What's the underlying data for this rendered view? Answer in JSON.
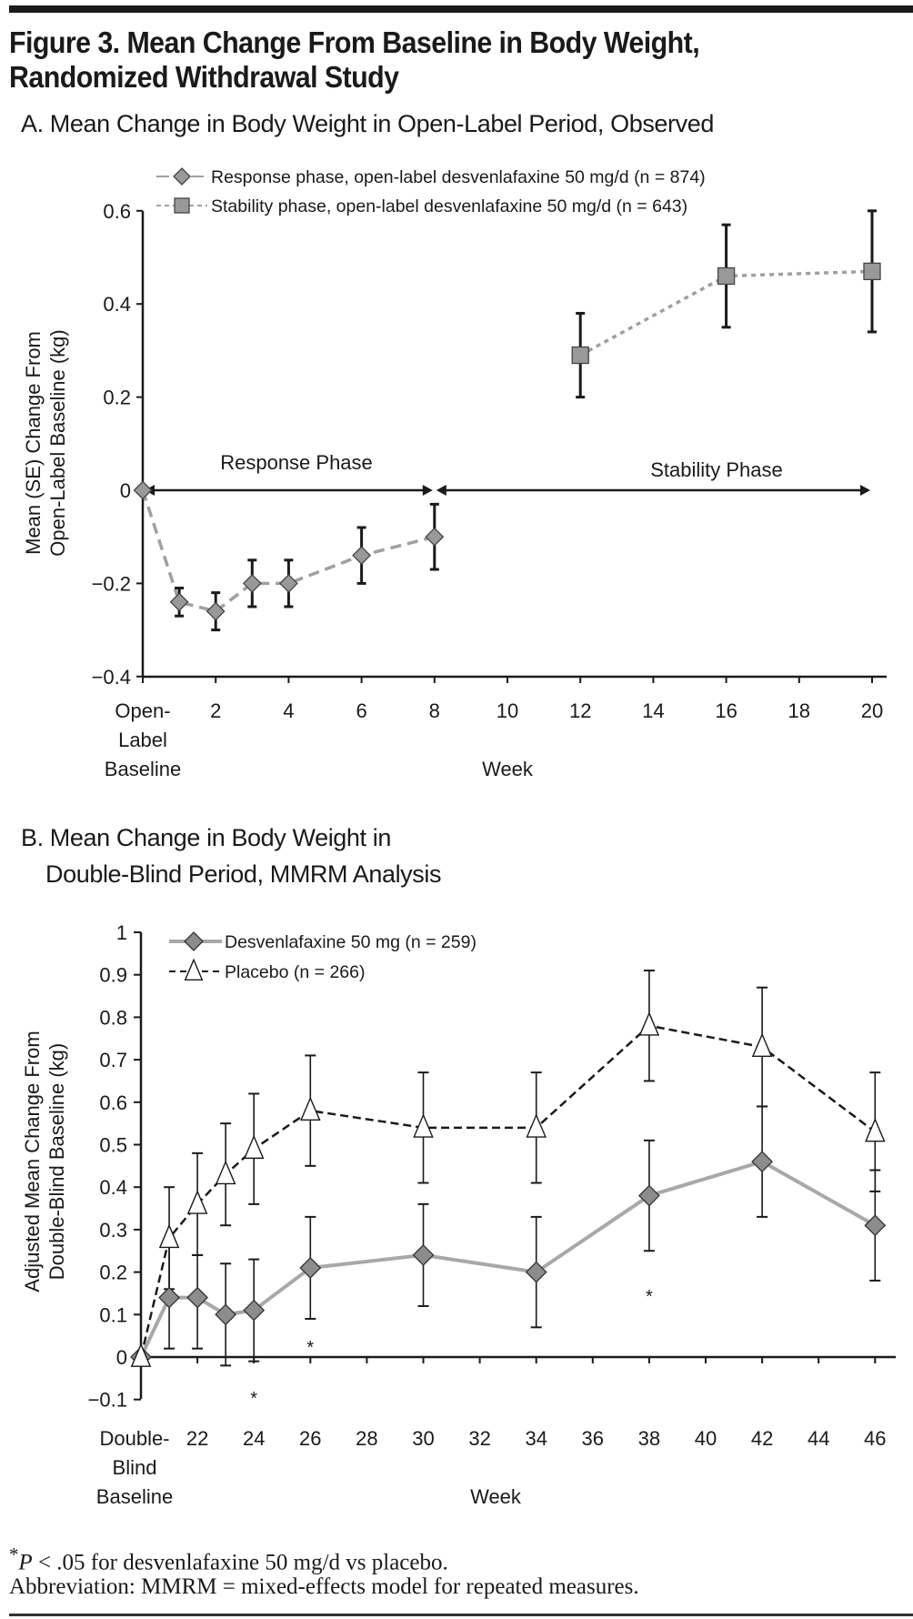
{
  "figure": {
    "title_line1": "Figure 3. Mean Change From Baseline in Body Weight,",
    "title_line2": "Randomized Withdrawal Study",
    "footnote_line1_star": "*",
    "footnote_line1_p": "P",
    "footnote_line1_rest": " < .05 for desvenlafaxine 50 mg/d vs placebo.",
    "footnote_line2": "Abbreviation: MMRM = mixed-effects model for repeated measures."
  },
  "chart_data": [
    {
      "type": "line",
      "title": "A. Mean Change in Body Weight in Open-Label Period, Observed",
      "xlabel": "Week",
      "ylabel_lines": [
        "Mean (SE) Change From",
        "Open-Label Baseline (kg)"
      ],
      "xlim": [
        0,
        20
      ],
      "ylim": [
        -0.4,
        0.6
      ],
      "x_ticks": [
        0,
        2,
        4,
        6,
        8,
        10,
        12,
        14,
        16,
        18,
        20
      ],
      "x_tick_labels": [
        "",
        "2",
        "4",
        "6",
        "8",
        "10",
        "12",
        "14",
        "16",
        "18",
        "20"
      ],
      "x_baseline_label_lines": [
        "Open-",
        "Label",
        "Baseline"
      ],
      "y_ticks": [
        0.6,
        0.4,
        0.2,
        0,
        -0.2,
        -0.4
      ],
      "y_tick_labels": [
        "0.6",
        "0.4",
        "0.2",
        "0",
        "−0.2",
        "−0.4"
      ],
      "grid": false,
      "legend_position": "top-left",
      "phase_annotations": [
        {
          "label": "Response Phase",
          "from": 0,
          "to": 8
        },
        {
          "label": "Stability Phase",
          "from": 8,
          "to": 20
        }
      ],
      "series": [
        {
          "name": "Response phase, open-label desvenlafaxine 50 mg/d (n = 874)",
          "marker": "diamond",
          "line": "dashed",
          "color": "#9a9a9a",
          "x": [
            0,
            1,
            2,
            3,
            4,
            6,
            8
          ],
          "y": [
            0,
            -0.24,
            -0.26,
            -0.2,
            -0.2,
            -0.14,
            -0.1
          ],
          "err_low": [
            null,
            -0.27,
            -0.3,
            -0.25,
            -0.25,
            -0.2,
            -0.17
          ],
          "err_high": [
            null,
            -0.21,
            -0.22,
            -0.15,
            -0.15,
            -0.08,
            -0.03
          ]
        },
        {
          "name": "Stability phase, open-label desvenlafaxine 50 mg/d (n = 643)",
          "marker": "square",
          "line": "dotted",
          "color": "#9a9a9a",
          "x": [
            12,
            16,
            20
          ],
          "y": [
            0.29,
            0.46,
            0.47
          ],
          "err_low": [
            0.2,
            0.35,
            0.34
          ],
          "err_high": [
            0.38,
            0.57,
            0.6
          ]
        }
      ]
    },
    {
      "type": "line",
      "title_lines": [
        "B. Mean Change in Body Weight in",
        "Double-Blind Period, MMRM Analysis"
      ],
      "xlabel": "Week",
      "ylabel_lines": [
        "Adjusted Mean Change From",
        "Double-Blind Baseline (kg)"
      ],
      "ylim": [
        -0.1,
        1
      ],
      "x_ticks": [
        "Baseline",
        22,
        24,
        26,
        28,
        30,
        32,
        34,
        36,
        38,
        40,
        42,
        44,
        46
      ],
      "x_tick_labels": [
        "",
        "22",
        "24",
        "26",
        "28",
        "30",
        "32",
        "34",
        "36",
        "38",
        "40",
        "42",
        "44",
        "46"
      ],
      "x_baseline_label_lines": [
        "Double-",
        "Blind",
        "Baseline"
      ],
      "y_ticks": [
        1,
        0.9,
        0.8,
        0.7,
        0.6,
        0.5,
        0.4,
        0.3,
        0.2,
        0.1,
        0,
        -0.1
      ],
      "y_tick_labels": [
        "1",
        "0.9",
        "0.8",
        "0.7",
        "0.6",
        "0.5",
        "0.4",
        "0.3",
        "0.2",
        "0.1",
        "0",
        "−0.1"
      ],
      "grid": false,
      "legend_position": "top-left",
      "significance_marker": "*",
      "significant_weeks": [
        24,
        26,
        38
      ],
      "series": [
        {
          "name": "Desvenlafaxine 50 mg (n = 259)",
          "marker": "diamond",
          "line": "solid",
          "color": "#a8a8a8",
          "x": [
            "Baseline",
            21,
            22,
            23,
            24,
            26,
            30,
            34,
            38,
            42,
            46
          ],
          "y": [
            0,
            0.14,
            0.14,
            0.1,
            0.11,
            0.21,
            0.24,
            0.2,
            0.38,
            0.46,
            0.31
          ],
          "err_low": [
            null,
            0.02,
            0.02,
            -0.02,
            -0.01,
            0.09,
            0.12,
            0.07,
            0.25,
            0.33,
            0.18
          ],
          "err_high": [
            null,
            0.26,
            0.24,
            0.22,
            0.23,
            0.33,
            0.36,
            0.33,
            0.51,
            0.59,
            0.44
          ]
        },
        {
          "name": "Placebo (n = 266)",
          "marker": "triangle",
          "line": "dashed",
          "color": "#1a1a1a",
          "x": [
            "Baseline",
            21,
            22,
            23,
            24,
            26,
            30,
            34,
            38,
            42,
            46
          ],
          "y": [
            0,
            0.28,
            0.36,
            0.43,
            0.49,
            0.58,
            0.54,
            0.54,
            0.78,
            0.73,
            0.53
          ],
          "err_low": [
            null,
            0.16,
            0.24,
            0.31,
            0.36,
            0.45,
            0.41,
            0.41,
            0.65,
            0.59,
            0.39
          ],
          "err_high": [
            null,
            0.4,
            0.48,
            0.55,
            0.62,
            0.71,
            0.67,
            0.67,
            0.91,
            0.87,
            0.67
          ]
        }
      ]
    }
  ]
}
